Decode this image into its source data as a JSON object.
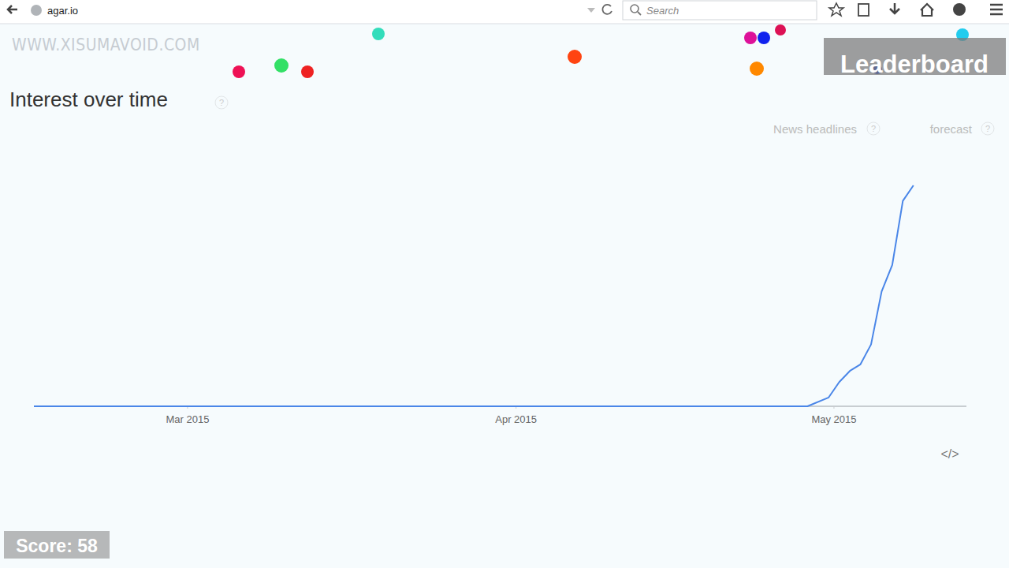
{
  "browser": {
    "url": "agar.io",
    "search": "Search"
  },
  "overlay": {
    "watermark": "WWW.XISUMAVOID.COM",
    "leaderboard": "Leaderboard",
    "score": "Score: 58"
  },
  "page": {
    "help_icon": "?",
    "header_links": [
      "News headlines",
      "forecast"
    ],
    "embed": "</>"
  },
  "chart_data": {
    "type": "line",
    "title": "Interest over time",
    "color": "#4a86e8",
    "x": [
      45.5,
      118.5,
      120.5,
      121.5,
      122.5,
      123.5,
      124.5,
      125.5,
      126.5,
      127.5,
      128.5
    ],
    "values": [
      0,
      0,
      4,
      11,
      16,
      19,
      28,
      52,
      64,
      93,
      100
    ],
    "xlim": [
      45.5,
      133.5
    ],
    "xticks": [
      {
        "value": 60,
        "label": "Mar 2015"
      },
      {
        "value": 91,
        "label": "Apr 2015"
      },
      {
        "value": 121,
        "label": "May 2015"
      }
    ],
    "ylim": [
      0,
      100
    ],
    "tick_labels": "x",
    "grid": false
  }
}
